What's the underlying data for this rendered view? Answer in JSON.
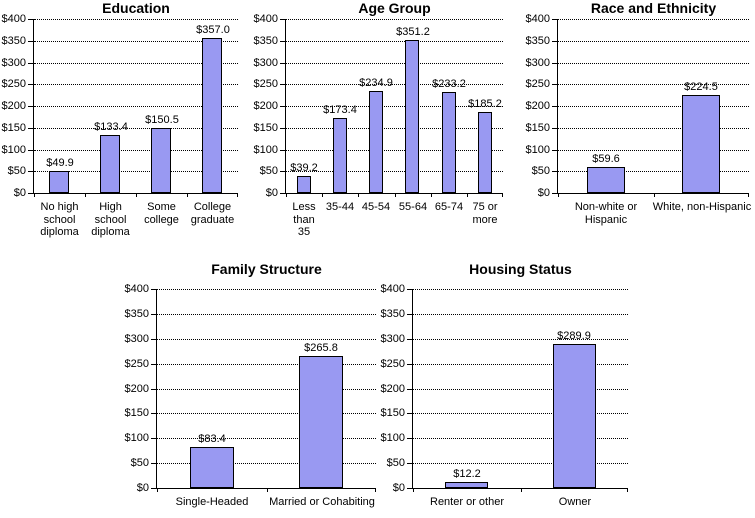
{
  "page": {
    "background": "#FFFFFF",
    "text_color": "#000000",
    "bar_fill_color": "#9999F2",
    "bar_border_color": "#000000",
    "gridline_color": "#000000"
  },
  "chart_data": [
    {
      "type": "bar",
      "title": "Education",
      "categories": [
        "No high\nschool\ndiploma",
        "High\nschool\ndiploma",
        "Some\ncollege",
        "College\ngraduate"
      ],
      "values": [
        49.9,
        133.4,
        150.5,
        357.0
      ],
      "data_labels": [
        "$49.9",
        "$133.4",
        "$150.5",
        "$357.0"
      ],
      "ylim": [
        0,
        400
      ],
      "ytick_step": 50,
      "ytick_labels": [
        "$0",
        "$50",
        "$100",
        "$150",
        "$200",
        "$250",
        "$300",
        "$350",
        "$400"
      ],
      "grid": "dotted-horizontal",
      "legend": "none"
    },
    {
      "type": "bar",
      "title": "Age Group",
      "categories": [
        "Less\nthan\n35",
        "35-44",
        "45-54",
        "55-64",
        "65-74",
        "75 or\nmore"
      ],
      "values": [
        39.2,
        173.4,
        234.9,
        351.2,
        233.2,
        185.2
      ],
      "data_labels": [
        "$39.2",
        "$173.4",
        "$234.9",
        "$351.2",
        "$233.2",
        "$185.2"
      ],
      "ylim": [
        0,
        400
      ],
      "ytick_step": 50,
      "ytick_labels": [
        "$0",
        "$50",
        "$100",
        "$150",
        "$200",
        "$250",
        "$300",
        "$350",
        "$400"
      ],
      "grid": "dotted-horizontal",
      "legend": "none"
    },
    {
      "type": "bar",
      "title": "Race and Ethnicity",
      "categories": [
        "Non-white or\nHispanic",
        "White, non-Hispanic"
      ],
      "values": [
        59.6,
        224.5
      ],
      "data_labels": [
        "$59.6",
        "$224.5"
      ],
      "ylim": [
        0,
        400
      ],
      "ytick_step": 50,
      "ytick_labels": [
        "$0",
        "$50",
        "$100",
        "$150",
        "$200",
        "$250",
        "$300",
        "$350",
        "$400"
      ],
      "grid": "dotted-horizontal",
      "legend": "none"
    },
    {
      "type": "bar",
      "title": "Family Structure",
      "categories": [
        "Single-Headed",
        "Married or Cohabiting"
      ],
      "values": [
        83.4,
        265.8
      ],
      "data_labels": [
        "$83.4",
        "$265.8"
      ],
      "ylim": [
        0,
        400
      ],
      "ytick_step": 50,
      "ytick_labels": [
        "$0",
        "$50",
        "$100",
        "$150",
        "$200",
        "$250",
        "$300",
        "$350",
        "$400"
      ],
      "grid": "dotted-horizontal",
      "legend": "none"
    },
    {
      "type": "bar",
      "title": "Housing Status",
      "categories": [
        "Renter or other",
        "Owner"
      ],
      "values": [
        12.2,
        289.9
      ],
      "data_labels": [
        "$12.2",
        "$289.9"
      ],
      "ylim": [
        0,
        400
      ],
      "ytick_step": 50,
      "ytick_labels": [
        "$0",
        "$50",
        "$100",
        "$150",
        "$200",
        "$250",
        "$300",
        "$350",
        "$400"
      ],
      "grid": "dotted-horizontal",
      "legend": "none"
    }
  ]
}
